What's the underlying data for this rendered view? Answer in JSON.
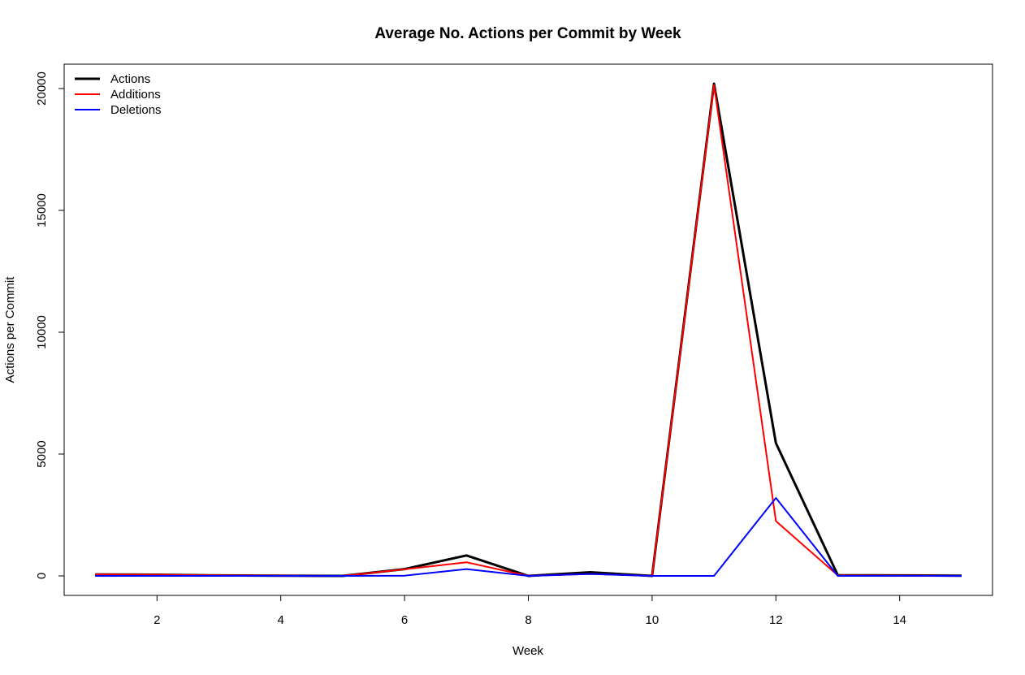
{
  "chart_data": {
    "type": "line",
    "title": "Average No. Actions per Commit by Week",
    "xlabel": "Week",
    "ylabel": "Actions per Commit",
    "x": [
      1,
      2,
      3,
      4,
      5,
      6,
      7,
      8,
      9,
      10,
      11,
      12,
      13,
      14,
      15
    ],
    "xlim": [
      0.5,
      15.5
    ],
    "ylim": [
      -800,
      21000
    ],
    "xticks": [
      2,
      4,
      6,
      8,
      10,
      12,
      14
    ],
    "yticks": [
      0,
      5000,
      10000,
      15000,
      20000
    ],
    "grid": false,
    "legend_position": "top-left",
    "series": [
      {
        "name": "Actions",
        "color": "#000000",
        "values": [
          60,
          50,
          20,
          10,
          0,
          280,
          840,
          0,
          150,
          0,
          20200,
          5450,
          30,
          20,
          10
        ]
      },
      {
        "name": "Additions",
        "color": "#ff0000",
        "values": [
          60,
          50,
          20,
          10,
          0,
          270,
          560,
          0,
          80,
          0,
          20150,
          2250,
          20,
          10,
          5
        ]
      },
      {
        "name": "Deletions",
        "color": "#0000ff",
        "values": [
          0,
          0,
          0,
          0,
          0,
          10,
          280,
          0,
          80,
          0,
          0,
          3200,
          0,
          0,
          0
        ]
      }
    ]
  }
}
